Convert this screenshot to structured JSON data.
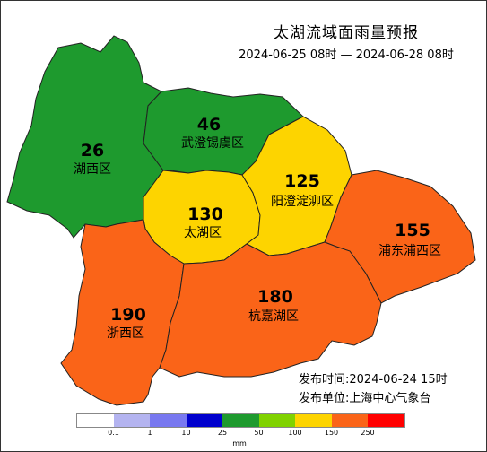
{
  "title": "太湖流域面雨量预报",
  "period": "2024-06-25 08时 — 2024-06-28 08时",
  "issue_time": "发布时间:2024-06-24 15时",
  "issue_unit": "发布单位:上海中心气象台",
  "regions": [
    {
      "id": "huxi",
      "name": "湖西区",
      "value": "26",
      "color": "#1e9a2e"
    },
    {
      "id": "wucheng",
      "name": "武澄锡虞区",
      "value": "46",
      "color": "#1e9a2e"
    },
    {
      "id": "taihu",
      "name": "太湖区",
      "value": "130",
      "color": "#fdd400"
    },
    {
      "id": "yangcheng",
      "name": "阳澄淀泖区",
      "value": "125",
      "color": "#fdd400"
    },
    {
      "id": "pudong",
      "name": "浦东浦西区",
      "value": "155",
      "color": "#fa6418"
    },
    {
      "id": "zhexi",
      "name": "浙西区",
      "value": "190",
      "color": "#fa6418"
    },
    {
      "id": "hangjia",
      "name": "杭嘉湖区",
      "value": "180",
      "color": "#fa6418"
    }
  ],
  "legend": {
    "colors": [
      "#ffffff",
      "#b4b4f0",
      "#7878f0",
      "#0000cd",
      "#1e9a2e",
      "#80d200",
      "#fdd400",
      "#fa6418",
      "#ff0000"
    ],
    "ticks": [
      "0.1",
      "1",
      "10",
      "25",
      "50",
      "100",
      "150",
      "250"
    ],
    "unit": "mm"
  }
}
